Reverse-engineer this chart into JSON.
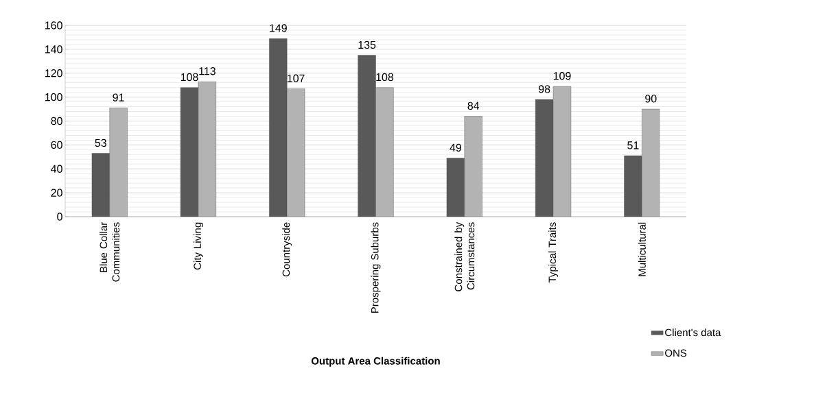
{
  "chart_data": {
    "type": "bar",
    "xlabel": "Output Area Classification",
    "categories": [
      "Blue Collar Communities",
      "City Living",
      "Countryside",
      "Prospering Suburbs",
      "Constrained by Circumstances",
      "Typical Traits",
      "Multicultural"
    ],
    "series": [
      {
        "name": "Client's data",
        "color": "#595959",
        "values": [
          53,
          108,
          149,
          135,
          49,
          98,
          51
        ]
      },
      {
        "name": "ONS",
        "color": "#b3b3b3",
        "values": [
          91,
          113,
          107,
          108,
          84,
          109,
          90
        ]
      }
    ],
    "ylim": [
      0,
      160
    ],
    "yticks": [
      0,
      20,
      40,
      60,
      80,
      100,
      120,
      140,
      160
    ],
    "grid": "y",
    "legend": "bottom right",
    "data_labels": true
  }
}
